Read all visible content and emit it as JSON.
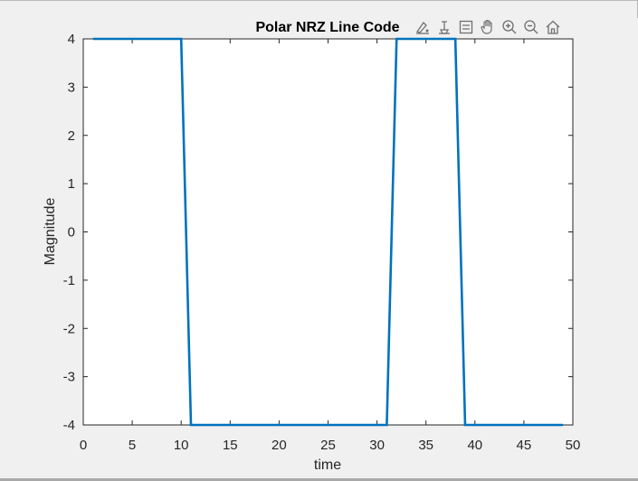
{
  "chart_data": {
    "type": "line",
    "title": "Polar NRZ Line Code",
    "xlabel": "time",
    "ylabel": "Magnitude",
    "xlim": [
      0,
      50
    ],
    "ylim": [
      -4,
      4
    ],
    "xticks": [
      0,
      5,
      10,
      15,
      20,
      25,
      30,
      35,
      40,
      45,
      50
    ],
    "yticks": [
      -4,
      -3,
      -2,
      -1,
      0,
      1,
      2,
      3,
      4
    ],
    "grid": false,
    "series": [
      {
        "color": "#0072bd",
        "x": [
          1,
          10,
          11,
          31,
          32,
          38,
          39,
          49
        ],
        "y": [
          4,
          4,
          -4,
          -4,
          4,
          4,
          -4,
          -4
        ]
      }
    ]
  },
  "toolbar": {
    "icons": [
      "brush-icon",
      "data-tips-icon",
      "legend-icon",
      "pan-icon",
      "zoom-in-icon",
      "zoom-out-icon",
      "home-icon"
    ]
  }
}
